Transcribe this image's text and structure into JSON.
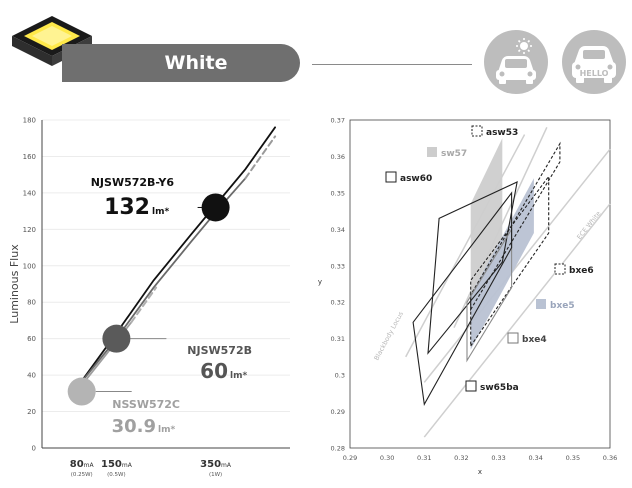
{
  "header": {
    "title": "White",
    "badges": [
      "car-sun-icon",
      "car-hello-icon"
    ],
    "badge_text": "HELLO",
    "accent": "#6f6f6f",
    "chip_color": "#ffe94a"
  },
  "chart_data": [
    {
      "type": "line",
      "ylabel": "Luminous Flux",
      "ylim": [
        0,
        180
      ],
      "yticks": [
        "0",
        "20",
        "40",
        "60",
        "80",
        "100",
        "120",
        "140",
        "160",
        "180"
      ],
      "xlim": [
        0,
        500
      ],
      "xticks": [
        {
          "x": 80,
          "value": "80",
          "unit": "mA",
          "note": "(0.25W)"
        },
        {
          "x": 150,
          "value": "150",
          "unit": "mA",
          "note": "(0.5W)"
        },
        {
          "x": 350,
          "value": "350",
          "unit": "mA",
          "note": "(1W)"
        }
      ],
      "series": [
        {
          "name": "NJSW572B-Y6",
          "color": "#111111",
          "style": "solid",
          "x": [
            70,
            150,
            225,
            300,
            355,
            410,
            470
          ],
          "y": [
            33,
            63,
            92,
            117,
            135,
            153,
            176
          ]
        },
        {
          "name": "NJSW572B",
          "color": "#6a6a6a",
          "style": "solid",
          "x": [
            70,
            150,
            225,
            300,
            355,
            410
          ],
          "y": [
            33,
            60,
            88,
            113,
            131,
            148
          ]
        },
        {
          "name": "",
          "color": "#9a9a9a",
          "style": "dashed",
          "x": [
            410,
            470
          ],
          "y": [
            148,
            171
          ]
        },
        {
          "name": "NSSW572C",
          "color": "#9e9e9e",
          "style": "solid",
          "x": [
            70,
            140,
            180
          ],
          "y": [
            31,
            55,
            69
          ]
        },
        {
          "name": "",
          "color": "#b0b0b0",
          "style": "dashed",
          "x": [
            180,
            230
          ],
          "y": [
            69,
            88
          ]
        }
      ],
      "markers": [
        {
          "x": 350,
          "y": 132,
          "fill": "#111111"
        },
        {
          "x": 150,
          "y": 60,
          "fill": "#5a5a5a"
        },
        {
          "x": 80,
          "y": 31,
          "fill": "#b4b4b4"
        }
      ],
      "labels": [
        {
          "name": "NJSW572B-Y6",
          "value": "132",
          "unit": "lm*",
          "color": "#111111"
        },
        {
          "name": "NJSW572B",
          "value": "60",
          "unit": "lm*",
          "color": "#555555"
        },
        {
          "name": "NSSW572C",
          "value": "30.9",
          "unit": "lm*",
          "color": "#a0a0a0"
        }
      ]
    },
    {
      "type": "scatter",
      "xlabel": "x",
      "ylabel": "y",
      "xlim": [
        0.29,
        0.36
      ],
      "ylim": [
        0.28,
        0.37
      ],
      "xticks": [
        "0.29",
        "0.30",
        "0.31",
        "0.32",
        "0.33",
        "0.34",
        "0.35",
        "0.36"
      ],
      "yticks": [
        "0.28",
        "0.29",
        "0.3",
        "0.31",
        "0.32",
        "0.33",
        "0.34",
        "0.35",
        "0.36",
        "0.37"
      ],
      "curves": [
        {
          "label": "Blackbody Locus",
          "color": "#cfcfcf",
          "x": [
            0.305,
            0.337
          ],
          "y": [
            0.305,
            0.366
          ]
        },
        {
          "label": "",
          "color": "#cfcfcf",
          "x": [
            0.318,
            0.343
          ],
          "y": [
            0.313,
            0.368
          ]
        },
        {
          "label": "ECE White",
          "color": "#cfcfcf",
          "x": [
            0.31,
            0.36
          ],
          "y": [
            0.283,
            0.347
          ]
        },
        {
          "label": "",
          "color": "#cfcfcf",
          "x": [
            0.31,
            0.36
          ],
          "y": [
            0.298,
            0.362
          ]
        }
      ],
      "regions": [
        {
          "name": "sw57",
          "fill": "#cdcdcd",
          "stroke": "none",
          "dash": false,
          "x": [
            0.3225,
            0.331,
            0.331,
            0.3225
          ],
          "y": [
            0.313,
            0.331,
            0.365,
            0.347
          ]
        },
        {
          "name": "bxe5",
          "fill": "#b9c2d3",
          "stroke": "none",
          "dash": false,
          "x": [
            0.3225,
            0.3395,
            0.3395,
            0.3225
          ],
          "y": [
            0.307,
            0.339,
            0.354,
            0.322
          ]
        },
        {
          "name": "asw53",
          "fill": "none",
          "stroke": "#222222",
          "dash": true,
          "x": [
            0.3225,
            0.3465,
            0.3465,
            0.3225
          ],
          "y": [
            0.318,
            0.3585,
            0.3635,
            0.322
          ]
        },
        {
          "name": "asw60",
          "fill": "none",
          "stroke": "#222222",
          "dash": false,
          "x": [
            0.311,
            0.331,
            0.335,
            0.314
          ],
          "y": [
            0.306,
            0.331,
            0.353,
            0.343
          ]
        },
        {
          "name": "bxe6",
          "fill": "none",
          "stroke": "#222222",
          "dash": true,
          "x": [
            0.3225,
            0.3435,
            0.3435,
            0.3225
          ],
          "y": [
            0.308,
            0.339,
            0.3545,
            0.326
          ]
        },
        {
          "name": "bxe4",
          "fill": "none",
          "stroke": "#8a8a8a",
          "dash": false,
          "x": [
            0.3215,
            0.3335,
            0.3335,
            0.3215
          ],
          "y": [
            0.304,
            0.324,
            0.34,
            0.32
          ]
        },
        {
          "name": "sw65ba",
          "fill": "none",
          "stroke": "#222222",
          "dash": false,
          "x": [
            0.307,
            0.3335,
            0.3335,
            0.31
          ],
          "y": [
            0.3145,
            0.35,
            0.335,
            0.292
          ]
        }
      ],
      "legend": [
        {
          "name": "asw53",
          "fill": "none",
          "stroke": "#222222",
          "dash": true,
          "text_color": "#222222"
        },
        {
          "name": "sw57",
          "fill": "#cdcdcd",
          "stroke": "none",
          "dash": false,
          "text_color": "#a8a8a8"
        },
        {
          "name": "asw60",
          "fill": "none",
          "stroke": "#222222",
          "dash": false,
          "text_color": "#222222"
        },
        {
          "name": "bxe6",
          "fill": "none",
          "stroke": "#222222",
          "dash": true,
          "text_color": "#222222"
        },
        {
          "name": "bxe5",
          "fill": "#b9c2d3",
          "stroke": "none",
          "dash": false,
          "text_color": "#9aa5bb"
        },
        {
          "name": "bxe4",
          "fill": "none",
          "stroke": "#777777",
          "dash": false,
          "text_color": "#444444"
        },
        {
          "name": "sw65ba",
          "fill": "none",
          "stroke": "#222222",
          "dash": false,
          "text_color": "#222222"
        }
      ]
    }
  ]
}
